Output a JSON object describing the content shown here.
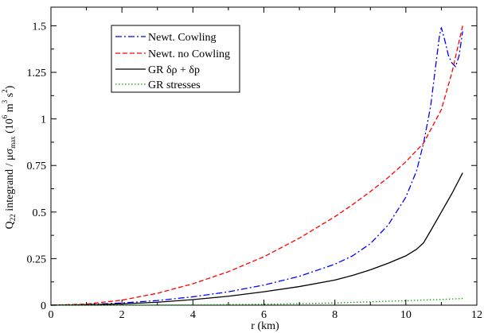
{
  "chart_data": {
    "type": "line",
    "title": "",
    "xlabel": "r (km)",
    "ylabel": {
      "prefix": "Q",
      "prefix_sub": "22",
      "middle": " integrand / μσ",
      "middle_sub": "max",
      "unit_open": " (10",
      "unit_exp1": "6",
      "unit_mid": " m",
      "unit_exp2": "3",
      "unit_mid2": " s",
      "unit_exp3": "2",
      "unit_close": ")"
    },
    "xlim": [
      0,
      12
    ],
    "ylim": [
      0,
      1.6
    ],
    "xticks": [
      0,
      2,
      4,
      6,
      8,
      10,
      12
    ],
    "xtick_labels": [
      "0",
      "2",
      "4",
      "6",
      "8",
      "10",
      "12"
    ],
    "yticks": [
      0,
      0.25,
      0.5,
      0.75,
      1.0,
      1.25,
      1.5
    ],
    "ytick_labels": [
      "0",
      "0.25",
      "0.5",
      "0.75",
      "1",
      "1.25",
      "1.5"
    ],
    "grid": false,
    "legend_position": "top-left",
    "series": [
      {
        "name": "Newt. Cowling",
        "color": "#0000ff",
        "dash": "dash-dot",
        "x": [
          0,
          1,
          2,
          3,
          4,
          5,
          6,
          7,
          8,
          8.5,
          9,
          9.5,
          10,
          10.3,
          10.5,
          10.7,
          10.85,
          10.95,
          11.0,
          11.1,
          11.2,
          11.3,
          11.4,
          11.5,
          11.6
        ],
        "y": [
          0,
          0.003,
          0.012,
          0.025,
          0.045,
          0.072,
          0.108,
          0.155,
          0.22,
          0.265,
          0.33,
          0.43,
          0.58,
          0.72,
          0.87,
          1.07,
          1.3,
          1.45,
          1.49,
          1.42,
          1.34,
          1.3,
          1.28,
          1.34,
          1.47
        ]
      },
      {
        "name": "Newt. no Cowling",
        "color": "#ff0000",
        "dash": "dashed",
        "x": [
          0,
          1,
          2,
          3,
          4,
          5,
          6,
          7,
          8,
          8.5,
          9,
          9.5,
          10,
          10.5,
          11,
          11.3,
          11.6
        ],
        "y": [
          0,
          0.006,
          0.027,
          0.064,
          0.115,
          0.18,
          0.26,
          0.36,
          0.475,
          0.54,
          0.61,
          0.685,
          0.77,
          0.87,
          1.05,
          1.25,
          1.5
        ]
      },
      {
        "name": "GR δρ + δp",
        "color": "#000000",
        "dash": "solid",
        "x": [
          0,
          1,
          2,
          3,
          4,
          5,
          6,
          7,
          8,
          8.5,
          9,
          9.5,
          10,
          10.3,
          10.5,
          10.7,
          11,
          11.3,
          11.6
        ],
        "y": [
          0,
          0.002,
          0.007,
          0.016,
          0.03,
          0.048,
          0.072,
          0.1,
          0.135,
          0.16,
          0.19,
          0.225,
          0.265,
          0.3,
          0.335,
          0.4,
          0.5,
          0.6,
          0.71
        ]
      },
      {
        "name": "GR stresses",
        "color": "#00aa00",
        "dash": "dotted",
        "x": [
          0,
          2,
          4,
          6,
          7,
          8,
          9,
          10,
          11,
          11.6
        ],
        "y": [
          0,
          0.0005,
          0.002,
          0.005,
          0.008,
          0.012,
          0.018,
          0.024,
          0.031,
          0.036
        ]
      }
    ]
  }
}
